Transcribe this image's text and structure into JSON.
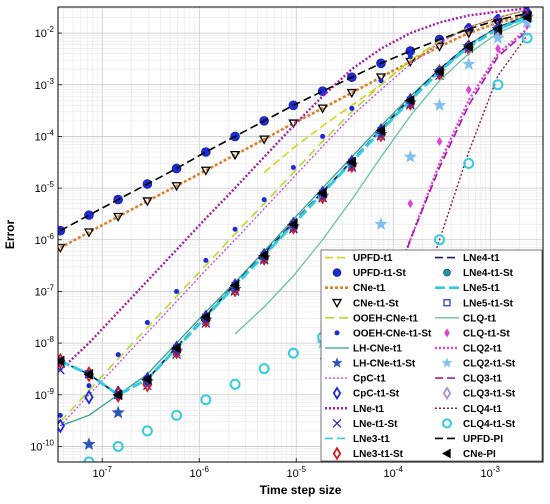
{
  "chart_data": {
    "type": "line",
    "xlabel": "Time step size",
    "ylabel": "Error",
    "x_scale": "log",
    "y_scale": "log",
    "xlim": [
      3.5e-08,
      0.0035
    ],
    "ylim": [
      5e-11,
      0.032
    ],
    "x_ticks": [
      {
        "value": 1e-07,
        "base": "10",
        "exp": "-7"
      },
      {
        "value": 1e-06,
        "base": "10",
        "exp": "-6"
      },
      {
        "value": 1e-05,
        "base": "10",
        "exp": "-5"
      },
      {
        "value": 0.0001,
        "base": "10",
        "exp": "-4"
      },
      {
        "value": 0.001,
        "base": "10",
        "exp": "-3"
      }
    ],
    "y_ticks": [
      {
        "value": 1e-10,
        "base": "10",
        "exp": "-10"
      },
      {
        "value": 1e-09,
        "base": "10",
        "exp": "-9"
      },
      {
        "value": 1e-08,
        "base": "10",
        "exp": "-8"
      },
      {
        "value": 1e-07,
        "base": "10",
        "exp": "-7"
      },
      {
        "value": 1e-06,
        "base": "10",
        "exp": "-6"
      },
      {
        "value": 1e-05,
        "base": "10",
        "exp": "-5"
      },
      {
        "value": 0.0001,
        "base": "10",
        "exp": "-4"
      },
      {
        "value": 0.001,
        "base": "10",
        "exp": "-3"
      },
      {
        "value": 0.01,
        "base": "10",
        "exp": "-2"
      }
    ],
    "grid": true,
    "legend_position": "bottom-right",
    "x": [
      3.7e-08,
      7.3e-08,
      1.46e-07,
      2.92e-07,
      5.84e-07,
      1.17e-06,
      2.34e-06,
      4.67e-06,
      9.35e-06,
      1.87e-05,
      3.74e-05,
      7.48e-05,
      0.00015,
      0.0003,
      0.0006,
      0.0012,
      0.0024
    ],
    "series": [
      {
        "name": "UPFD-t1",
        "color": "#d4d41a",
        "dash": "8,4",
        "width": 1.6,
        "marker": "none",
        "values": [
          null,
          null,
          null,
          null,
          null,
          null,
          null,
          2e-05,
          6e-05,
          0.00016,
          0.0004,
          0.001,
          0.0028,
          0.0065,
          0.013,
          0.02,
          0.028
        ]
      },
      {
        "name": "UPFD-t1-St",
        "color": "#1a2bd6",
        "dash": "",
        "width": 0,
        "marker": "circle-fill",
        "msize": 4.5,
        "values": [
          1.5e-06,
          3e-06,
          6e-06,
          1.2e-05,
          2.4e-05,
          5e-05,
          0.0001,
          0.0002,
          0.0004,
          0.00075,
          0.0014,
          0.0026,
          0.0045,
          0.0075,
          0.012,
          0.018,
          0.024
        ]
      },
      {
        "name": "CNe-t1",
        "color": "#d9822b",
        "dash": "3,2",
        "width": 2.6,
        "marker": "none",
        "values": [
          7e-07,
          1.4e-06,
          2.8e-06,
          5.6e-06,
          1.1e-05,
          2.2e-05,
          4.4e-05,
          8.8e-05,
          0.00018,
          0.00035,
          0.0007,
          0.0014,
          0.0028,
          0.0055,
          0.01,
          0.016,
          0.022
        ]
      },
      {
        "name": "CNe-t1-St",
        "color": "#000000",
        "dash": "",
        "width": 0,
        "marker": "tri-down",
        "msize": 4,
        "values": [
          7e-07,
          1.4e-06,
          2.8e-06,
          5.6e-06,
          1.1e-05,
          2.2e-05,
          4.4e-05,
          8.8e-05,
          0.00018,
          0.00035,
          0.0007,
          0.0014,
          0.0028,
          0.0055,
          0.01,
          0.016,
          0.022
        ]
      },
      {
        "name": "OOEH-CNe-t1",
        "color": "#b5d933",
        "dash": "9,5",
        "width": 1.6,
        "marker": "none",
        "values": [
          3e-10,
          1.2e-09,
          5e-09,
          2e-08,
          8e-08,
          3.2e-07,
          1.3e-06,
          5e-06,
          2e-05,
          8e-05,
          0.0003,
          0.001,
          0.003,
          0.007,
          0.013,
          0.02,
          0.028
        ]
      },
      {
        "name": "OOEH-CNe-t1-St",
        "color": "#1a2bd6",
        "dash": "",
        "width": 0,
        "marker": "dot",
        "msize": 2.5,
        "values": [
          4e-10,
          1.5e-09,
          6e-09,
          2.5e-08,
          1e-07,
          4e-07,
          1.6e-06,
          6e-06,
          2.5e-05,
          0.0001,
          0.00035,
          0.0012,
          0.0035,
          0.008,
          0.014,
          0.021,
          0.029
        ]
      },
      {
        "name": "LH-CNe-t1",
        "color": "#33a38a",
        "dash": "",
        "width": 1.3,
        "marker": "none",
        "values": [
          2.5e-10,
          4e-10,
          1e-09,
          2.5e-09,
          1e-08,
          4e-08,
          1.5e-07,
          6e-07,
          2.5e-06,
          1e-05,
          4e-05,
          0.00016,
          0.0006,
          0.002,
          0.006,
          0.013,
          0.022
        ]
      },
      {
        "name": "LH-CNe-t1-St",
        "color": "#2a56b8",
        "dash": "",
        "width": 0,
        "marker": "star",
        "msize": 5,
        "values": [
          null,
          1.1e-10,
          4.5e-10,
          1.8e-09,
          7e-09,
          2.8e-08,
          1.1e-07,
          4.5e-07,
          1.8e-06,
          7e-06,
          2.8e-05,
          0.00011,
          0.00045,
          0.0018,
          0.0055,
          0.012,
          0.02
        ]
      },
      {
        "name": "CpC-t1",
        "color": "#d43ad9",
        "dash": "2,2",
        "width": 1.3,
        "marker": "none",
        "values": [
          2.5e-10,
          1e-09,
          4e-09,
          1.6e-08,
          6.4e-08,
          2.6e-07,
          1e-06,
          4e-06,
          1.6e-05,
          6.4e-05,
          0.00025,
          0.0008,
          0.0025,
          0.0065,
          0.013,
          0.02,
          0.028
        ]
      },
      {
        "name": "CpC-t1-St",
        "color": "#1a2bd6",
        "dash": "",
        "width": 0,
        "marker": "diamond",
        "msize": 4.5,
        "values": [
          2.5e-10,
          9e-10,
          1.1e-09,
          2e-09,
          8e-09,
          3.2e-08,
          1.3e-07,
          5e-07,
          2e-06,
          8e-06,
          3.2e-05,
          0.00013,
          0.0005,
          0.0018,
          0.0055,
          0.012,
          0.02
        ]
      },
      {
        "name": "LNe-t1",
        "color": "#a61aa6",
        "dash": "2,2",
        "width": 2.4,
        "marker": "none",
        "values": [
          3e-09,
          1e-08,
          4e-08,
          1.6e-07,
          6.4e-07,
          2.6e-06,
          1e-05,
          4e-05,
          0.00016,
          0.0006,
          0.002,
          0.005,
          0.01,
          0.016,
          0.022,
          0.026,
          0.03
        ]
      },
      {
        "name": "LNe-t1-St",
        "color": "#2a2ab8",
        "dash": "",
        "width": 0,
        "marker": "x",
        "msize": 4,
        "values": [
          3e-09,
          2.5e-09,
          1e-09,
          1.5e-09,
          6e-09,
          2.4e-08,
          1e-07,
          4e-07,
          1.6e-06,
          6.4e-06,
          2.5e-05,
          0.0001,
          0.0004,
          0.0015,
          0.005,
          0.011,
          0.019
        ]
      },
      {
        "name": "LNe3-t1",
        "color": "#33cce0",
        "dash": "8,4",
        "width": 1.6,
        "marker": "none",
        "values": [
          4.5e-09,
          2.5e-09,
          1e-09,
          2e-09,
          8e-09,
          3.2e-08,
          1.3e-07,
          5e-07,
          2e-06,
          8e-06,
          3.2e-05,
          0.00013,
          0.0005,
          0.0018,
          0.0055,
          0.012,
          0.02
        ]
      },
      {
        "name": "LNe3-t1-St",
        "color": "#d61a1a",
        "dash": "",
        "width": 0,
        "marker": "diamond-open",
        "msize": 5,
        "values": [
          4.5e-09,
          2.5e-09,
          1e-09,
          1.6e-09,
          7e-09,
          2.8e-08,
          1.1e-07,
          4.5e-07,
          1.8e-06,
          7e-06,
          2.8e-05,
          0.00011,
          0.00045,
          0.0017,
          0.0052,
          0.011,
          0.019
        ]
      },
      {
        "name": "LNe4-t1",
        "color": "#1a1a5c",
        "dash": "8,4",
        "width": 1.6,
        "marker": "none",
        "values": [
          4.5e-09,
          2.5e-09,
          1e-09,
          2e-09,
          8.5e-09,
          3.4e-08,
          1.4e-07,
          5.5e-07,
          2.2e-06,
          8.5e-06,
          3.4e-05,
          0.00014,
          0.00055,
          0.002,
          0.006,
          0.013,
          0.021
        ]
      },
      {
        "name": "LNe4-t1-St",
        "color": "#1a9999",
        "dash": "",
        "width": 0,
        "marker": "circle-fill",
        "msize": 3.5,
        "values": [
          4.5e-09,
          2.5e-09,
          1e-09,
          1.9e-09,
          8e-09,
          3.2e-08,
          1.3e-07,
          5.2e-07,
          2.1e-06,
          8.2e-06,
          3.3e-05,
          0.00013,
          0.00052,
          0.0019,
          0.0058,
          0.0125,
          0.0205
        ]
      },
      {
        "name": "LNe5-t1",
        "color": "#33cce0",
        "dash": "10,4",
        "width": 3,
        "marker": "none",
        "values": [
          4.5e-09,
          2.5e-09,
          1e-09,
          2e-09,
          8e-09,
          3.2e-08,
          1.3e-07,
          5e-07,
          2e-06,
          8e-06,
          3.2e-05,
          0.00013,
          0.0005,
          0.0018,
          0.0055,
          0.012,
          0.02
        ]
      },
      {
        "name": "LNe5-t1-St",
        "color": "#1a2bd6",
        "dash": "",
        "width": 0,
        "marker": "square-open",
        "msize": 3,
        "values": [
          4.5e-09,
          2.5e-09,
          1e-09,
          2e-09,
          8e-09,
          3.2e-08,
          1.3e-07,
          5e-07,
          2e-06,
          8e-06,
          3.2e-05,
          0.00013,
          0.0005,
          0.0018,
          0.0055,
          0.012,
          0.02
        ]
      },
      {
        "name": "CLQ-t1",
        "color": "#66c2a5",
        "dash": "",
        "width": 1.3,
        "marker": "none",
        "values": [
          null,
          null,
          null,
          null,
          null,
          null,
          1.5e-08,
          5e-08,
          2e-07,
          1e-06,
          6e-06,
          4e-05,
          0.00025,
          0.0012,
          0.004,
          0.01,
          0.018
        ]
      },
      {
        "name": "CLQ-t1-St",
        "color": "#e040d9",
        "dash": "",
        "width": 0,
        "marker": "diamond-fill",
        "msize": 3.5,
        "values": [
          null,
          null,
          null,
          null,
          null,
          null,
          null,
          null,
          null,
          5e-09,
          2e-08,
          3e-07,
          5e-06,
          8e-05,
          0.0008,
          0.005,
          0.014
        ]
      },
      {
        "name": "CLQ2-t1",
        "color": "#e040d9",
        "dash": "2,2",
        "width": 2.4,
        "marker": "none",
        "values": [
          null,
          null,
          null,
          null,
          null,
          null,
          null,
          null,
          null,
          null,
          2e-10,
          3e-08,
          1e-06,
          3e-05,
          0.0005,
          0.004,
          0.012
        ]
      },
      {
        "name": "CLQ2-t1-St",
        "color": "#80c0f0",
        "dash": "",
        "width": 0,
        "marker": "star",
        "msize": 5,
        "values": [
          null,
          null,
          null,
          null,
          null,
          null,
          null,
          null,
          null,
          1e-08,
          1e-07,
          2e-06,
          4e-05,
          0.0004,
          0.0025,
          0.008,
          0.016
        ]
      },
      {
        "name": "CLQ3-t1",
        "color": "#a61aa6",
        "dash": "8,4",
        "width": 1.6,
        "marker": "none",
        "values": [
          null,
          null,
          null,
          null,
          null,
          null,
          null,
          null,
          null,
          null,
          null,
          2e-08,
          1e-06,
          2.5e-05,
          0.0004,
          0.0035,
          0.011
        ]
      },
      {
        "name": "CLQ3-t1-St",
        "color": "#b38cd9",
        "dash": "",
        "width": 0,
        "marker": "diamond-open",
        "msize": 5,
        "values": [
          null,
          null,
          null,
          null,
          null,
          null,
          null,
          null,
          null,
          null,
          null,
          null,
          null,
          null,
          null,
          null,
          null
        ]
      },
      {
        "name": "CLQ4-t1",
        "color": "#8c1a3a",
        "dash": "2,2",
        "width": 1.4,
        "marker": "none",
        "values": [
          null,
          null,
          null,
          null,
          null,
          null,
          null,
          null,
          null,
          null,
          null,
          null,
          2e-08,
          1e-06,
          5e-05,
          0.0015,
          0.009
        ]
      },
      {
        "name": "CLQ4-t1-St",
        "color": "#33cce0",
        "dash": "",
        "width": 0,
        "marker": "circle-open",
        "msize": 4.5,
        "values": [
          null,
          5e-11,
          1e-10,
          2e-10,
          4e-10,
          8e-10,
          1.6e-09,
          3.2e-09,
          6.4e-09,
          1.3e-08,
          2.6e-08,
          5e-08,
          1e-07,
          1e-06,
          3e-05,
          0.001,
          0.008
        ]
      },
      {
        "name": "UPFD-PI",
        "color": "#000000",
        "dash": "8,4",
        "width": 1.6,
        "marker": "none",
        "values": [
          1.5e-06,
          3e-06,
          6e-06,
          1.2e-05,
          2.4e-05,
          5e-05,
          0.0001,
          0.0002,
          0.0004,
          0.00075,
          0.0014,
          0.0026,
          0.0045,
          0.0075,
          0.012,
          0.018,
          0.024
        ]
      },
      {
        "name": "CNe-PI",
        "color": "#000000",
        "dash": "",
        "width": 0,
        "marker": "tri-left",
        "msize": 4.5,
        "values": [
          4.5e-09,
          2.5e-09,
          1e-09,
          2e-09,
          8e-09,
          3.2e-08,
          1.3e-07,
          5e-07,
          2e-06,
          8e-06,
          3.2e-05,
          0.00013,
          0.0005,
          0.0018,
          0.0055,
          0.012,
          0.02
        ]
      }
    ]
  }
}
